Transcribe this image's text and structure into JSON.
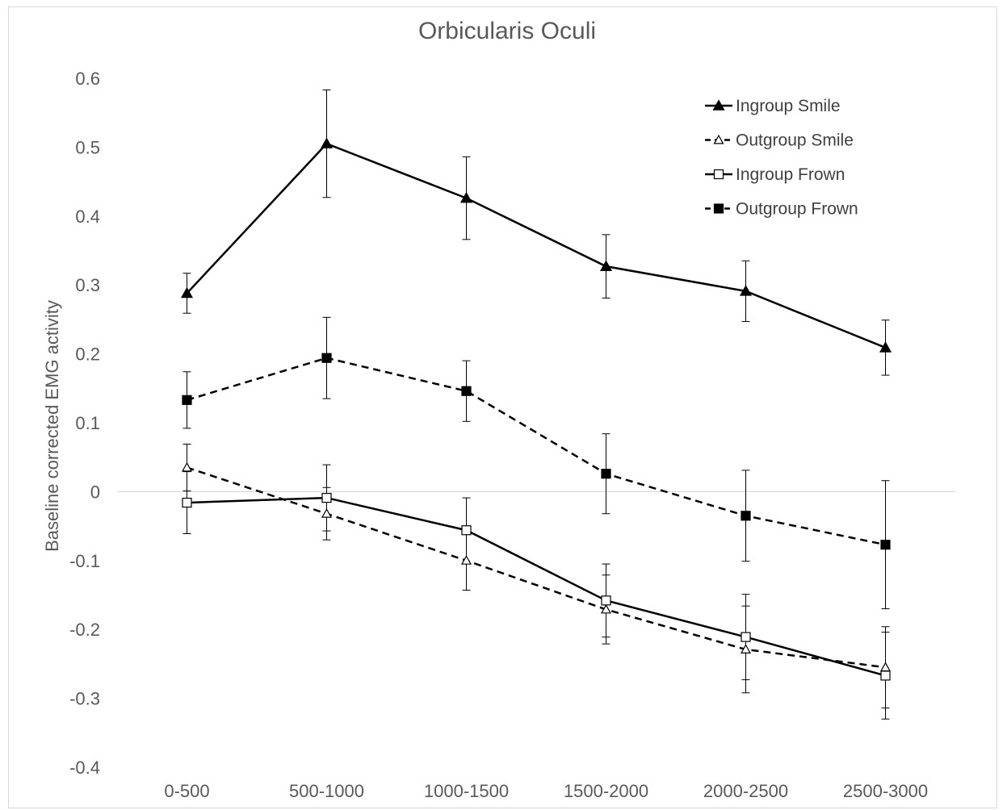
{
  "chart_data": {
    "type": "line",
    "title": "Orbicularis Oculi",
    "xlabel": "",
    "ylabel": "Baseline corrected EMG activity",
    "categories": [
      "0-500",
      "500-1000",
      "1000-1500",
      "1500-2000",
      "2000-2500",
      "2500-3000"
    ],
    "ylim": [
      -0.4,
      0.6
    ],
    "yticks": [
      0.6,
      0.5,
      0.4,
      0.3,
      0.2,
      0.1,
      0,
      -0.1,
      -0.2,
      -0.3,
      -0.4
    ],
    "ytick_labels": [
      "0.6",
      "0.5",
      "0.4",
      "0.3",
      "0.2",
      "0.1",
      "0",
      "-0.1",
      "-0.2",
      "-0.3",
      "-0.4"
    ],
    "grid": false,
    "zero_line": true,
    "legend_position": "top-right",
    "series": [
      {
        "name": "Ingroup Smile",
        "values": [
          0.288,
          0.505,
          0.426,
          0.327,
          0.291,
          0.209
        ],
        "error": [
          0.029,
          0.078,
          0.06,
          0.046,
          0.044,
          0.04
        ],
        "marker": "triangle-filled",
        "dash": "solid",
        "color": "#000000"
      },
      {
        "name": "Outgroup Smile",
        "values": [
          0.035,
          -0.032,
          -0.1,
          -0.171,
          -0.229,
          -0.255
        ],
        "error": [
          0.034,
          0.038,
          0.043,
          0.05,
          0.063,
          0.059
        ],
        "marker": "triangle-open",
        "dash": "dashed",
        "color": "#000000"
      },
      {
        "name": "Ingroup Frown",
        "values": [
          -0.016,
          -0.009,
          -0.056,
          -0.158,
          -0.211,
          -0.267
        ],
        "error": [
          0.045,
          0.048,
          0.047,
          0.053,
          0.062,
          0.063
        ],
        "marker": "square-open",
        "dash": "solid",
        "color": "#000000"
      },
      {
        "name": "Outgroup Frown",
        "values": [
          0.133,
          0.194,
          0.146,
          0.026,
          -0.035,
          -0.077
        ],
        "error": [
          0.041,
          0.059,
          0.044,
          0.058,
          0.066,
          0.093
        ],
        "marker": "square-filled",
        "dash": "dashed",
        "color": "#000000"
      }
    ]
  }
}
